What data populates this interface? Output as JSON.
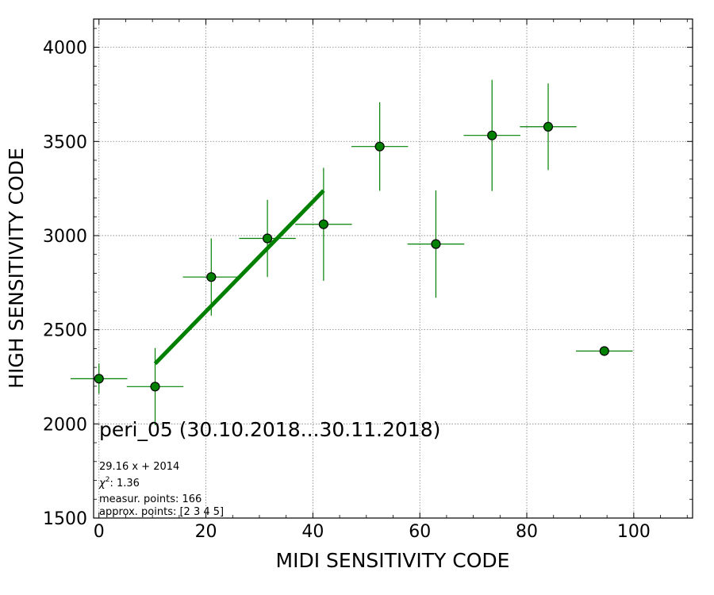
{
  "chart_data": {
    "type": "scatter",
    "title": "peri_05 (30.10.2018...30.11.2018)",
    "xlabel": "MIDI SENSITIVITY CODE",
    "ylabel": "HIGH SENSITIVITY CODE",
    "xlim": [
      -1,
      111
    ],
    "ylim": [
      1500,
      4150
    ],
    "xticks": [
      0,
      20,
      40,
      60,
      80,
      100
    ],
    "yticks": [
      1500,
      2000,
      2500,
      3000,
      3500,
      4000
    ],
    "grid": true,
    "points": [
      {
        "x": 0,
        "y": 2240,
        "xerr": 5.3,
        "yerr": 80
      },
      {
        "x": 10.5,
        "y": 2198,
        "xerr": 5.3,
        "yerr": 205
      },
      {
        "x": 21,
        "y": 2780,
        "xerr": 5.3,
        "yerr": 205
      },
      {
        "x": 31.5,
        "y": 2985,
        "xerr": 5.3,
        "yerr": 205
      },
      {
        "x": 42,
        "y": 3060,
        "xerr": 5.3,
        "yerr": 300
      },
      {
        "x": 52.5,
        "y": 3473,
        "xerr": 5.3,
        "yerr": 235
      },
      {
        "x": 63,
        "y": 2955,
        "xerr": 5.3,
        "yerr": 285
      },
      {
        "x": 73.5,
        "y": 3532,
        "xerr": 5.3,
        "yerr": 295
      },
      {
        "x": 84,
        "y": 3578,
        "xerr": 5.3,
        "yerr": 230
      },
      {
        "x": 94.5,
        "y": 2387,
        "xerr": 5.3,
        "yerr": 0
      }
    ],
    "fit": {
      "slope": 29.16,
      "intercept": 2014,
      "x_range": [
        10.5,
        42
      ]
    },
    "colors": {
      "marker": "#008000",
      "marker_edge": "#000000",
      "errorbar": "#008000",
      "fit": "#008000",
      "grid": "#808080"
    },
    "annotations": {
      "fit_equation": "29.16 x + 2014",
      "chi2_prefix": "χ",
      "chi2_sup": "2",
      "chi2_value": ": 1.36",
      "measured_points": "measur. points: 166",
      "approx_points": "approx. points: [2 3 4 5]"
    }
  }
}
